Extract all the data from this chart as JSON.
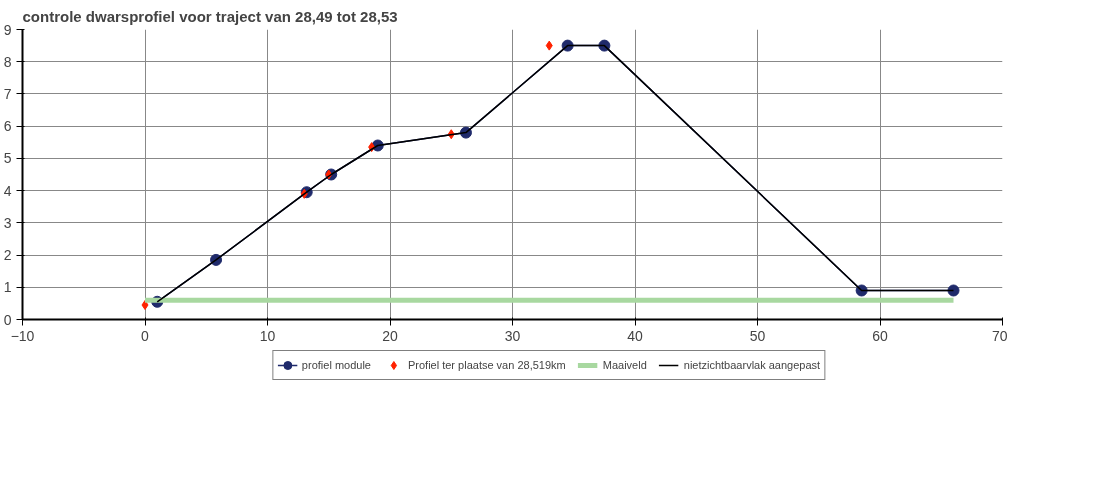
{
  "chart_data": {
    "type": "line",
    "title": "controle dwarsprofiel voor traject van 28,49 tot 28,53",
    "xlim": [
      -10,
      70
    ],
    "xticks": [
      -10,
      0,
      10,
      20,
      30,
      40,
      50,
      60,
      70
    ],
    "ylim": [
      0,
      9
    ],
    "yticks": [
      0,
      1,
      2,
      3,
      4,
      5,
      6,
      7,
      8,
      9
    ],
    "grid": true,
    "legend": "bottom",
    "series": [
      {
        "name": "profiel module",
        "color": "#1f2a6b",
        "marker": "circle",
        "x": [
          1,
          5.8,
          13.2,
          15.2,
          19,
          26.2,
          34.5,
          37.5,
          58.5,
          66
        ],
        "values": [
          0.55,
          1.85,
          3.95,
          4.5,
          5.4,
          5.8,
          8.5,
          8.5,
          0.9,
          0.9
        ]
      },
      {
        "name": "Profiel ter plaatse van 28,519km",
        "type": "scatter",
        "color": "#ff2200",
        "marker": "diamond",
        "x": [
          0,
          13,
          15,
          18.5,
          25,
          33
        ],
        "values": [
          0.45,
          3.9,
          4.5,
          5.35,
          5.75,
          8.5
        ]
      },
      {
        "name": "Maaiveld",
        "color": "#a8d8a0",
        "marker": "none",
        "x": [
          0,
          66
        ],
        "values": [
          0.6,
          0.6
        ]
      },
      {
        "name": "nietzichtbaarvlak aangepast",
        "color": "#000000",
        "marker": "none",
        "x": [
          1,
          5.8,
          13.2,
          15.2,
          19,
          26.2,
          34.5,
          37.5,
          58.5,
          66
        ],
        "values": [
          0.55,
          1.85,
          3.95,
          4.5,
          5.4,
          5.8,
          8.5,
          8.5,
          0.9,
          0.9
        ]
      }
    ]
  }
}
